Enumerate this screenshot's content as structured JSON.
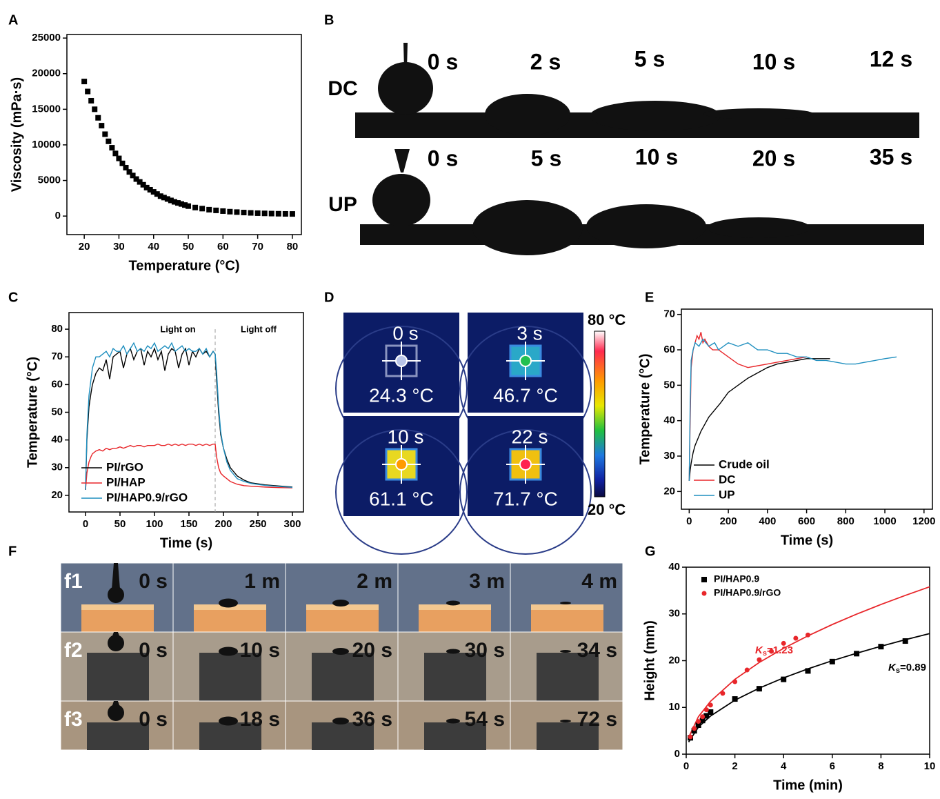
{
  "panels": {
    "labels": [
      "A",
      "B",
      "C",
      "D",
      "E",
      "F",
      "G"
    ],
    "B": {
      "rows": [
        {
          "name": "DC",
          "times": [
            "0 s",
            "2 s",
            "5 s",
            "10 s",
            "12 s"
          ]
        },
        {
          "name": "UP",
          "times": [
            "0 s",
            "5 s",
            "10 s",
            "20 s",
            "35 s"
          ]
        }
      ]
    },
    "D": {
      "tiles": [
        {
          "time": "0 s",
          "temp": "24.3 °C"
        },
        {
          "time": "3 s",
          "temp": "46.7 °C"
        },
        {
          "time": "10 s",
          "temp": "61.1 °C"
        },
        {
          "time": "22 s",
          "temp": "71.7 °C"
        }
      ],
      "colorbar_max": "80 °C",
      "colorbar_min": "20 °C"
    },
    "F": {
      "rows": [
        {
          "name": "f1",
          "times": [
            "0 s",
            "1 m",
            "2 m",
            "3 m",
            "4 m"
          ]
        },
        {
          "name": "f2",
          "times": [
            "0 s",
            "10 s",
            "20 s",
            "30 s",
            "34 s"
          ]
        },
        {
          "name": "f3",
          "times": [
            "0 s",
            "18 s",
            "36 s",
            "54 s",
            "72 s"
          ]
        }
      ]
    }
  },
  "chart_data": [
    {
      "type": "scatter",
      "x_label": "Temperature (°C)",
      "y_label": "Viscosity (mPa·s)",
      "xlim": [
        15,
        82.6
      ],
      "ylim": [
        -2600,
        25500
      ],
      "xticks": [
        20,
        30,
        40,
        50,
        60,
        70,
        80
      ],
      "yticks": [
        0,
        5000,
        10000,
        15000,
        20000,
        25000
      ],
      "series": [
        {
          "color": "#000000",
          "marker": "square",
          "x": [
            20,
            21,
            22,
            23,
            24,
            25,
            26,
            27,
            28,
            29,
            30,
            31,
            32,
            33,
            34,
            35,
            36,
            37,
            38,
            39,
            40,
            41,
            42,
            43,
            44,
            45,
            46,
            47,
            48,
            49,
            50,
            52,
            54,
            56,
            58,
            60,
            62,
            64,
            66,
            68,
            70,
            72,
            74,
            76,
            78,
            80
          ],
          "values": [
            18900,
            17500,
            16200,
            15000,
            13800,
            12700,
            11500,
            10500,
            9600,
            8800,
            8100,
            7400,
            6800,
            6200,
            5700,
            5200,
            4800,
            4400,
            4000,
            3700,
            3400,
            3100,
            2800,
            2600,
            2400,
            2200,
            2000,
            1850,
            1700,
            1550,
            1400,
            1200,
            1050,
            900,
            800,
            700,
            620,
            560,
            500,
            450,
            410,
            380,
            350,
            330,
            310,
            300
          ]
        }
      ]
    },
    {
      "type": "line",
      "x_label": "Time (s)",
      "y_label": "Temperature (°C)",
      "xlim": [
        -24,
        316
      ],
      "ylim": [
        14,
        86
      ],
      "xticks": [
        0,
        50,
        100,
        150,
        200,
        250,
        300
      ],
      "yticks": [
        20,
        30,
        40,
        50,
        60,
        70,
        80
      ],
      "legend": "lower left",
      "vline": 188,
      "annotations": [
        {
          "text": "Light on"
        },
        {
          "text": "Light off"
        }
      ],
      "series": [
        {
          "name": "PI/rGO",
          "color": "#000000",
          "x": [
            0,
            2,
            5,
            8,
            10,
            15,
            20,
            25,
            30,
            35,
            40,
            45,
            50,
            55,
            60,
            65,
            70,
            75,
            80,
            85,
            90,
            95,
            100,
            105,
            110,
            115,
            120,
            125,
            130,
            135,
            140,
            145,
            150,
            155,
            160,
            165,
            170,
            175,
            180,
            185,
            188,
            190,
            193,
            196,
            200,
            205,
            210,
            220,
            230,
            240,
            260,
            280,
            300
          ],
          "values": [
            22,
            40,
            52,
            57,
            60,
            64,
            66,
            65,
            69,
            62,
            70,
            71,
            72,
            66,
            71,
            73,
            69,
            72,
            73,
            67,
            72,
            70,
            73,
            69,
            72,
            65,
            71,
            73,
            72,
            66,
            71,
            73,
            67,
            72,
            70,
            73,
            71,
            72,
            70,
            72,
            71,
            62,
            50,
            42,
            37,
            33,
            30,
            27,
            25.5,
            24.5,
            23.8,
            23.4,
            23
          ]
        },
        {
          "name": "PI/HAP",
          "color": "#e8262a",
          "x": [
            0,
            2,
            5,
            8,
            10,
            15,
            20,
            25,
            30,
            35,
            40,
            45,
            50,
            55,
            60,
            65,
            70,
            75,
            80,
            85,
            90,
            95,
            100,
            105,
            110,
            115,
            120,
            125,
            130,
            135,
            140,
            145,
            150,
            155,
            160,
            165,
            170,
            175,
            180,
            185,
            188,
            190,
            193,
            196,
            200,
            205,
            210,
            220,
            230,
            240,
            260,
            280,
            300
          ],
          "values": [
            22,
            28,
            32,
            34,
            35,
            36,
            36.5,
            36,
            37,
            36.5,
            37,
            37,
            37.5,
            37,
            37.5,
            38,
            37.5,
            38,
            38,
            37.5,
            38,
            38,
            38,
            38.5,
            38,
            38,
            38.5,
            38,
            38.5,
            38,
            38.5,
            38,
            38.5,
            38.5,
            38,
            38.5,
            38,
            38.5,
            38,
            38.5,
            38.5,
            34,
            30,
            28,
            27,
            26,
            25,
            24,
            23.5,
            23.3,
            23,
            22.8,
            22.7
          ]
        },
        {
          "name": "PI/HAP0.9/rGO",
          "color": "#1f8fbf",
          "x": [
            0,
            2,
            5,
            8,
            10,
            15,
            20,
            25,
            30,
            35,
            40,
            45,
            50,
            55,
            60,
            65,
            70,
            75,
            80,
            85,
            90,
            95,
            100,
            105,
            110,
            115,
            120,
            125,
            130,
            135,
            140,
            145,
            150,
            155,
            160,
            165,
            170,
            175,
            180,
            185,
            188,
            190,
            193,
            196,
            200,
            205,
            210,
            220,
            230,
            240,
            260,
            280,
            300
          ],
          "values": [
            22,
            42,
            56,
            62,
            66,
            70,
            70,
            71,
            72,
            70,
            73,
            72,
            72,
            74,
            71,
            73,
            75,
            72,
            73,
            72,
            74,
            73,
            75,
            72,
            73,
            74,
            73,
            75,
            72,
            73,
            74,
            72,
            73,
            72,
            72,
            73,
            71,
            73,
            70,
            72,
            71,
            65,
            52,
            43,
            37,
            32,
            29,
            26,
            25,
            24.3,
            23.6,
            23.2,
            22.9
          ]
        }
      ]
    },
    {
      "type": "line",
      "x_label": "Time (s)",
      "y_label": "Temperature (°C)",
      "xlim": [
        -40,
        1243
      ],
      "ylim": [
        15,
        71.5
      ],
      "xticks": [
        0,
        200,
        400,
        600,
        800,
        1000,
        1200
      ],
      "yticks": [
        20,
        30,
        40,
        50,
        60,
        70
      ],
      "legend": "lower left",
      "series": [
        {
          "name": "Crude oil",
          "color": "#000000",
          "x": [
            0,
            5,
            10,
            20,
            30,
            45,
            60,
            80,
            100,
            130,
            160,
            200,
            250,
            300,
            350,
            400,
            450,
            500,
            550,
            600,
            650,
            720
          ],
          "values": [
            23,
            26,
            28,
            31,
            33,
            35,
            37,
            39,
            41,
            43,
            45,
            48,
            50,
            52,
            53.5,
            55,
            56,
            56.5,
            57,
            57.5,
            57.5,
            57.5
          ]
        },
        {
          "name": "DC",
          "color": "#e8262a",
          "x": [
            0,
            5,
            10,
            20,
            30,
            40,
            50,
            60,
            70,
            80,
            100,
            120,
            150,
            200,
            250,
            300,
            350,
            400,
            450,
            500,
            550,
            600
          ],
          "values": [
            23,
            40,
            55,
            60,
            62,
            64,
            63,
            65,
            62,
            63,
            61,
            60,
            60,
            58,
            56,
            55,
            55.5,
            56,
            56.5,
            57,
            57.5,
            58
          ]
        },
        {
          "name": "UP",
          "color": "#1f8fbf",
          "x": [
            0,
            5,
            10,
            20,
            30,
            50,
            70,
            100,
            130,
            150,
            200,
            250,
            300,
            350,
            400,
            450,
            500,
            550,
            600,
            650,
            700,
            750,
            800,
            850,
            900,
            950,
            1000,
            1060
          ],
          "values": [
            23,
            45,
            57,
            60,
            62,
            61,
            63,
            61,
            62,
            60,
            62,
            61,
            62,
            60,
            60,
            59,
            59,
            58,
            58,
            57,
            57,
            56.5,
            56,
            56,
            56.5,
            57,
            57.5,
            58
          ]
        }
      ]
    },
    {
      "type": "scatter",
      "x_label": "Time (min)",
      "y_label": "Height (mm)",
      "xlim": [
        0,
        10
      ],
      "ylim": [
        0,
        40
      ],
      "xticks": [
        0,
        2,
        4,
        6,
        8,
        10
      ],
      "yticks": [
        0,
        10,
        20,
        30,
        40
      ],
      "legend": "upper left",
      "annotations": [
        {
          "symbol": "K",
          "subscript": "s",
          "text": "=1.23",
          "color": "#e8262a"
        },
        {
          "symbol": "K",
          "subscript": "s",
          "text": "=0.89",
          "color": "#000000"
        }
      ],
      "series": [
        {
          "name": "PI/HAP0.9",
          "color": "#000000",
          "marker": "square",
          "x": [
            0.17,
            0.33,
            0.5,
            0.67,
            0.83,
            1,
            2,
            3,
            4,
            5,
            6,
            7,
            8,
            9
          ],
          "values": [
            3.5,
            5,
            6.2,
            7.2,
            8.2,
            9,
            11.8,
            14,
            16,
            17.8,
            19.8,
            21.5,
            23,
            24.2
          ]
        },
        {
          "name": "PI/HAP0.9/rGO",
          "color": "#e8262a",
          "marker": "circle",
          "x": [
            0.17,
            0.33,
            0.5,
            0.67,
            0.83,
            1,
            1.5,
            2,
            2.5,
            3,
            3.5,
            4,
            4.5,
            5
          ],
          "values": [
            3.7,
            5.5,
            7,
            8,
            9.5,
            10.5,
            13,
            15.5,
            18,
            20.2,
            22,
            23.7,
            24.8,
            25.5
          ]
        }
      ],
      "fits": [
        {
          "color": "#000000",
          "x": [
            0.1,
            0.5,
            1,
            2,
            3,
            4,
            5,
            6,
            7,
            8,
            9,
            10
          ],
          "values": [
            2.58,
            5.77,
            8.16,
            11.54,
            14.13,
            16.32,
            18.25,
            19.99,
            21.59,
            23.08,
            24.48,
            25.8
          ]
        },
        {
          "color": "#e8262a",
          "x": [
            0.1,
            0.5,
            1,
            2,
            3,
            4,
            5,
            6,
            7,
            8,
            9,
            10
          ],
          "values": [
            3.58,
            8.0,
            11.32,
            16.01,
            19.61,
            22.64,
            25.31,
            27.73,
            29.95,
            32.02,
            33.96,
            35.8
          ]
        }
      ]
    }
  ]
}
